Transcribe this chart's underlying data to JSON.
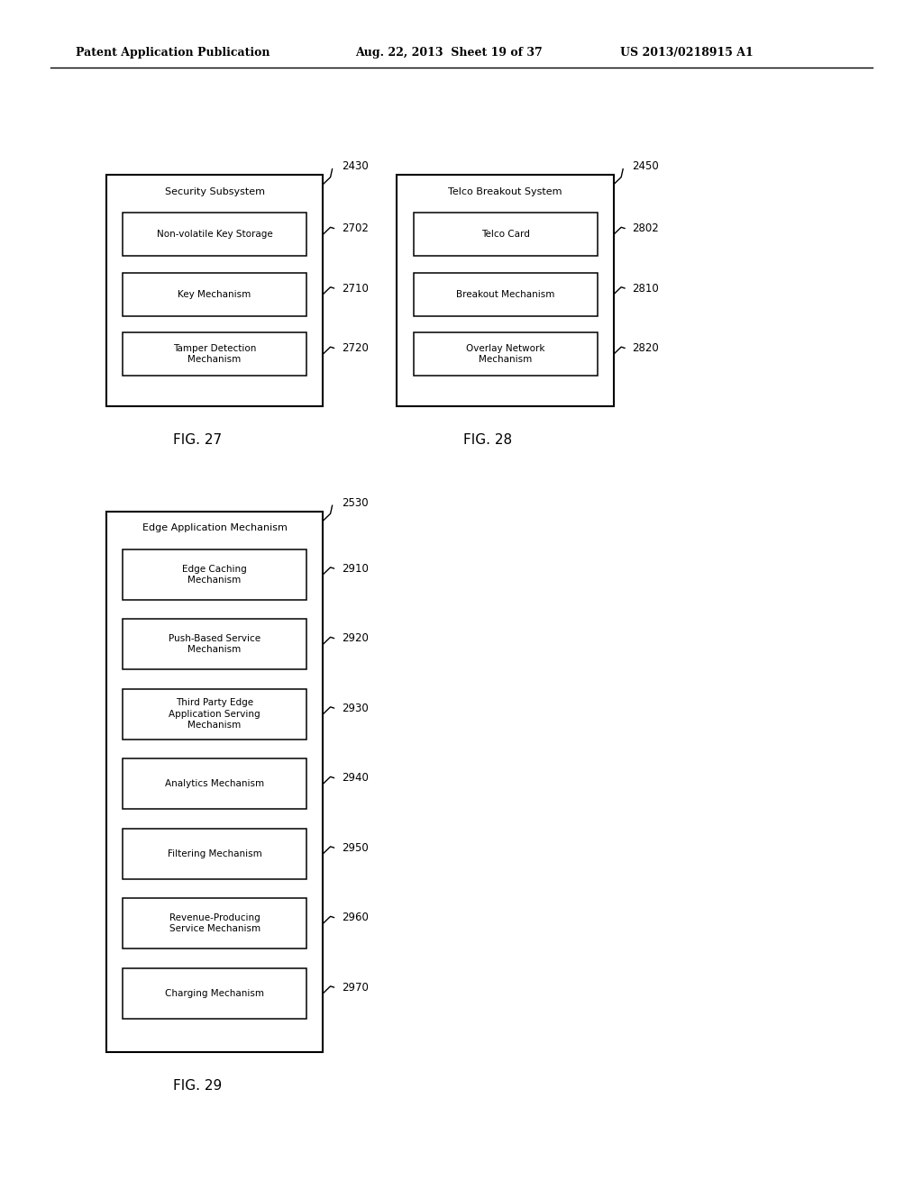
{
  "bg_color": "#ffffff",
  "header_left": "Patent Application Publication",
  "header_mid": "Aug. 22, 2013  Sheet 19 of 37",
  "header_right": "US 2013/0218915 A1",
  "fig27": {
    "title": "Security Subsystem",
    "outer_label": "2430",
    "items": [
      {
        "label": "2702",
        "text": "Non-volatile Key Storage"
      },
      {
        "label": "2710",
        "text": "Key Mechanism"
      },
      {
        "label": "2720",
        "text": "Tamper Detection\nMechanism"
      }
    ],
    "fig_label": "FIG. 27",
    "ox": 0.115,
    "oy": 0.658,
    "ow": 0.235,
    "oh": 0.195
  },
  "fig28": {
    "title": "Telco Breakout System",
    "outer_label": "2450",
    "items": [
      {
        "label": "2802",
        "text": "Telco Card"
      },
      {
        "label": "2810",
        "text": "Breakout Mechanism"
      },
      {
        "label": "2820",
        "text": "Overlay Network\nMechanism"
      }
    ],
    "fig_label": "FIG. 28",
    "ox": 0.43,
    "oy": 0.658,
    "ow": 0.235,
    "oh": 0.195
  },
  "fig29": {
    "title": "Edge Application Mechanism",
    "outer_label": "2530",
    "items": [
      {
        "label": "2910",
        "text": "Edge Caching\nMechanism"
      },
      {
        "label": "2920",
        "text": "Push-Based Service\nMechanism"
      },
      {
        "label": "2930",
        "text": "Third Party Edge\nApplication Serving\nMechanism"
      },
      {
        "label": "2940",
        "text": "Analytics Mechanism"
      },
      {
        "label": "2950",
        "text": "Filtering Mechanism"
      },
      {
        "label": "2960",
        "text": "Revenue-Producing\nService Mechanism"
      },
      {
        "label": "2970",
        "text": "Charging Mechanism"
      }
    ],
    "fig_label": "FIG. 29",
    "ox": 0.115,
    "oy": 0.115,
    "ow": 0.235,
    "oh": 0.455
  }
}
